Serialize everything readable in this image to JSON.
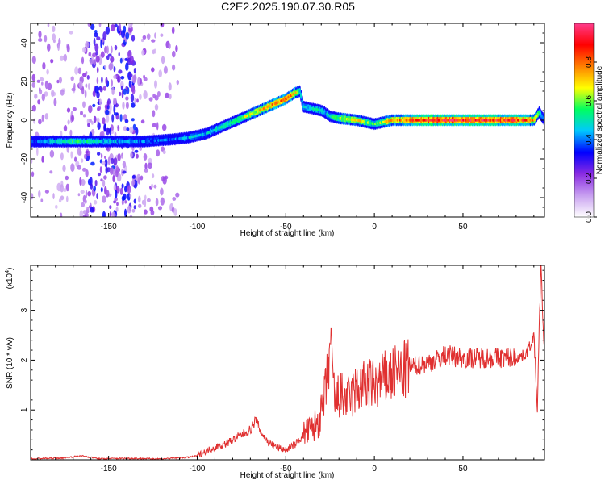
{
  "title": "C2E2.2025.190.07.30.R05",
  "colors": {
    "snr_line": "#e03030",
    "colormap": [
      "#ffffff",
      "#c8a0f0",
      "#8a2be2",
      "#0000ff",
      "#00c8ff",
      "#00ff60",
      "#ffff00",
      "#ff8000",
      "#ff0000",
      "#ff3c8c"
    ]
  },
  "chart_data": [
    {
      "type": "heatmap",
      "xlabel": "Height of straight line (km)",
      "ylabel": "Frequency (Hz)",
      "xlim": [
        -194,
        96
      ],
      "ylim": [
        -50,
        50
      ],
      "xticks": [
        "-150",
        "-100",
        "-50",
        "0",
        "50"
      ],
      "xtick_values": [
        -150,
        -100,
        -50,
        0,
        50
      ],
      "yticks": [
        "-40",
        "-20",
        "0",
        "20",
        "40"
      ],
      "ytick_values": [
        -40,
        -20,
        0,
        20,
        40
      ],
      "colorbar": {
        "label": "Normalized spectral amplitude",
        "range": [
          0,
          1
        ],
        "ticks": [
          "0.0",
          "0.2",
          "0.4",
          "0.6",
          "0.8"
        ],
        "tick_values": [
          0.0,
          0.2,
          0.4,
          0.6,
          0.8
        ]
      },
      "ridge": {
        "x": [
          -194,
          -170,
          -150,
          -130,
          -115,
          -105,
          -95,
          -90,
          -80,
          -70,
          -60,
          -50,
          -45,
          -42,
          -40,
          -35,
          -30,
          -28,
          -25,
          -20,
          -10,
          0,
          10,
          30,
          50,
          70,
          85,
          90,
          93,
          96
        ],
        "y": [
          -11,
          -11,
          -11,
          -11,
          -10,
          -9,
          -7,
          -5,
          -1,
          3,
          7,
          11,
          14,
          15,
          7,
          6,
          5,
          4,
          2,
          1,
          0,
          -2,
          0,
          0,
          0,
          0,
          0,
          0,
          4,
          0
        ],
        "amplitude": [
          0.35,
          0.55,
          0.45,
          0.4,
          0.4,
          0.45,
          0.45,
          0.5,
          0.55,
          0.65,
          0.75,
          0.85,
          0.75,
          0.5,
          0.45,
          0.5,
          0.5,
          0.45,
          0.5,
          0.65,
          0.7,
          0.55,
          0.75,
          0.9,
          0.95,
          0.9,
          0.85,
          0.75,
          0.55,
          0.4
        ]
      },
      "noise_region_x": [
        -194,
        -110
      ]
    },
    {
      "type": "line",
      "xlabel": "Height of straight line (km)",
      "ylabel": "SNR (10 * v/v)",
      "y_multiplier": "(x10",
      "y_multiplier_exp": "4",
      "y_multiplier_close": ")",
      "xlim": [
        -194,
        96
      ],
      "ylim": [
        0,
        3.9
      ],
      "xticks": [
        "-150",
        "-100",
        "-50",
        "0",
        "50"
      ],
      "xtick_values": [
        -150,
        -100,
        -50,
        0,
        50
      ],
      "yticks": [
        "1",
        "2",
        "3"
      ],
      "ytick_values": [
        1,
        2,
        3
      ],
      "series": [
        {
          "x": [
            -194,
            -175,
            -165,
            -155,
            -140,
            -120,
            -105,
            -100,
            -95,
            -90,
            -85,
            -80,
            -75,
            -70,
            -67,
            -64,
            -60,
            -55,
            -50,
            -45,
            -40,
            -35,
            -30,
            -27,
            -25,
            -22,
            -20,
            -15,
            -10,
            -5,
            0,
            5,
            10,
            15,
            20,
            25,
            30,
            35,
            40,
            50,
            60,
            70,
            80,
            85,
            88,
            90,
            92,
            93,
            94,
            96
          ],
          "y": [
            0.02,
            0.04,
            0.08,
            0.02,
            0.03,
            0.02,
            0.05,
            0.08,
            0.18,
            0.25,
            0.3,
            0.4,
            0.5,
            0.6,
            0.8,
            0.55,
            0.35,
            0.25,
            0.2,
            0.3,
            0.5,
            0.6,
            0.9,
            1.5,
            2.3,
            1.1,
            1.3,
            1.2,
            1.4,
            1.5,
            1.5,
            1.6,
            1.7,
            1.75,
            1.85,
            1.9,
            1.95,
            2.0,
            2.1,
            2.05,
            2.05,
            2.05,
            2.05,
            2.1,
            2.3,
            2.5,
            1.0,
            2.6,
            3.9,
            2.0
          ]
        }
      ]
    }
  ]
}
